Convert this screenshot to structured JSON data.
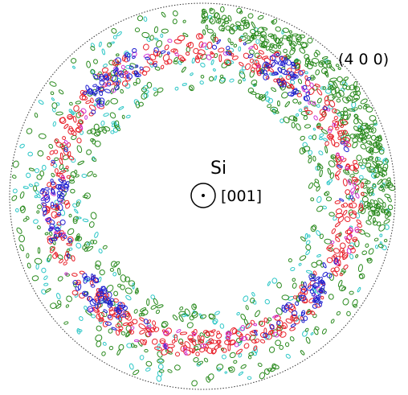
{
  "annotations": {
    "plane": "(4 0 0)",
    "material": "Si",
    "direction": "[001]"
  }
}
